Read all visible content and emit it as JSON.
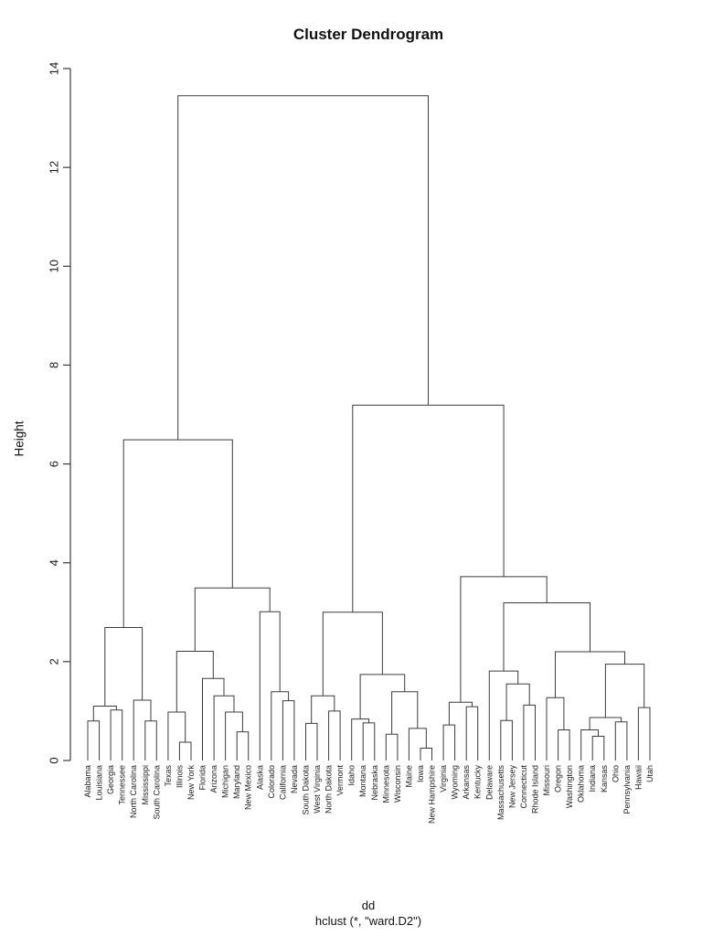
{
  "title": "Cluster Dendrogram",
  "ylabel": "Height",
  "footer": [
    "dd",
    "hclust (*, \"ward.D2\")"
  ],
  "colors": {
    "line": "#3c3c3c",
    "text": "#1c1c1c",
    "background": "#ffffff"
  },
  "chart_data": {
    "type": "dendrogram",
    "title": "Cluster Dendrogram",
    "ylabel": "Height",
    "footer": [
      "dd",
      "hclust (*, \"ward.D2\")"
    ],
    "y_axis": {
      "min": 0,
      "max": 14,
      "ticks": [
        0,
        2,
        4,
        6,
        8,
        10,
        12,
        14
      ],
      "grid": false
    },
    "leaves_in_order": [
      "Alabama",
      "Louisiana",
      "Georgia",
      "Tennessee",
      "North Carolina",
      "Mississippi",
      "South Carolina",
      "Texas",
      "Illinois",
      "New York",
      "Florida",
      "Arizona",
      "Michigan",
      "Maryland",
      "New Mexico",
      "Alaska",
      "Colorado",
      "California",
      "Nevada",
      "South Dakota",
      "West Virginia",
      "North Dakota",
      "Vermont",
      "Idaho",
      "Montana",
      "Nebraska",
      "Minnesota",
      "Wisconsin",
      "Maine",
      "Iowa",
      "New Hampshire",
      "Virginia",
      "Wyoming",
      "Arkansas",
      "Kentucky",
      "Delaware",
      "Massachusetts",
      "New Jersey",
      "Connecticut",
      "Rhode Island",
      "Missouri",
      "Oregon",
      "Washington",
      "Oklahoma",
      "Indiana",
      "Kansas",
      "Ohio",
      "Pennsylvania",
      "Hawaii",
      "Utah"
    ],
    "tree": {
      "h": 13.45,
      "c": [
        {
          "h": 6.49,
          "c": [
            {
              "h": 2.69,
              "c": [
                {
                  "h": 1.1,
                  "c": [
                    {
                      "h": 0.8,
                      "c": [
                        "Alabama",
                        "Louisiana"
                      ]
                    },
                    {
                      "h": 1.02,
                      "c": [
                        "Georgia",
                        "Tennessee"
                      ]
                    }
                  ]
                },
                {
                  "h": 1.22,
                  "c": [
                    "North Carolina",
                    {
                      "h": 0.8,
                      "c": [
                        "Mississippi",
                        "South Carolina"
                      ]
                    }
                  ]
                }
              ]
            },
            {
              "h": 3.49,
              "c": [
                {
                  "h": 2.21,
                  "c": [
                    {
                      "h": 0.98,
                      "c": [
                        "Texas",
                        {
                          "h": 0.37,
                          "c": [
                            "Illinois",
                            "New York"
                          ]
                        }
                      ]
                    },
                    {
                      "h": 1.66,
                      "c": [
                        "Florida",
                        {
                          "h": 1.31,
                          "c": [
                            "Arizona",
                            {
                              "h": 0.98,
                              "c": [
                                "Michigan",
                                {
                                  "h": 0.58,
                                  "c": [
                                    "Maryland",
                                    "New Mexico"
                                  ]
                                }
                              ]
                            }
                          ]
                        }
                      ]
                    }
                  ]
                },
                {
                  "h": 3.01,
                  "c": [
                    "Alaska",
                    {
                      "h": 1.39,
                      "c": [
                        "Colorado",
                        {
                          "h": 1.21,
                          "c": [
                            "California",
                            "Nevada"
                          ]
                        }
                      ]
                    }
                  ]
                }
              ]
            }
          ]
        },
        {
          "h": 7.19,
          "c": [
            {
              "h": 3.0,
              "c": [
                {
                  "h": 1.31,
                  "c": [
                    {
                      "h": 0.75,
                      "c": [
                        "South Dakota",
                        "West Virginia"
                      ]
                    },
                    {
                      "h": 1.0,
                      "c": [
                        "North Dakota",
                        "Vermont"
                      ]
                    }
                  ]
                },
                {
                  "h": 1.74,
                  "c": [
                    {
                      "h": 0.84,
                      "c": [
                        "Idaho",
                        {
                          "h": 0.76,
                          "c": [
                            "Montana",
                            "Nebraska"
                          ]
                        }
                      ]
                    },
                    {
                      "h": 1.39,
                      "c": [
                        {
                          "h": 0.53,
                          "c": [
                            "Minnesota",
                            "Wisconsin"
                          ]
                        },
                        {
                          "h": 0.65,
                          "c": [
                            "Maine",
                            {
                              "h": 0.25,
                              "c": [
                                "Iowa",
                                "New Hampshire"
                              ]
                            }
                          ]
                        }
                      ]
                    }
                  ]
                }
              ]
            },
            {
              "h": 3.72,
              "c": [
                {
                  "h": 1.18,
                  "c": [
                    {
                      "h": 0.72,
                      "c": [
                        "Virginia",
                        "Wyoming"
                      ]
                    },
                    {
                      "h": 1.09,
                      "c": [
                        "Arkansas",
                        "Kentucky"
                      ]
                    }
                  ]
                },
                {
                  "h": 3.19,
                  "c": [
                    {
                      "h": 1.81,
                      "c": [
                        "Delaware",
                        {
                          "h": 1.55,
                          "c": [
                            {
                              "h": 0.81,
                              "c": [
                                "Massachusetts",
                                "New Jersey"
                              ]
                            },
                            {
                              "h": 1.12,
                              "c": [
                                "Connecticut",
                                "Rhode Island"
                              ]
                            }
                          ]
                        }
                      ]
                    },
                    {
                      "h": 2.2,
                      "c": [
                        {
                          "h": 1.27,
                          "c": [
                            "Missouri",
                            {
                              "h": 0.62,
                              "c": [
                                "Oregon",
                                "Washington"
                              ]
                            }
                          ]
                        },
                        {
                          "h": 1.95,
                          "c": [
                            {
                              "h": 0.87,
                              "c": [
                                {
                                  "h": 0.62,
                                  "c": [
                                    "Oklahoma",
                                    {
                                      "h": 0.49,
                                      "c": [
                                        "Indiana",
                                        "Kansas"
                                      ]
                                    }
                                  ]
                                },
                                {
                                  "h": 0.78,
                                  "c": [
                                    "Ohio",
                                    "Pennsylvania"
                                  ]
                                }
                              ]
                            },
                            {
                              "h": 1.07,
                              "c": [
                                "Hawaii",
                                "Utah"
                              ]
                            }
                          ]
                        }
                      ]
                    }
                  ]
                }
              ]
            }
          ]
        }
      ]
    }
  }
}
